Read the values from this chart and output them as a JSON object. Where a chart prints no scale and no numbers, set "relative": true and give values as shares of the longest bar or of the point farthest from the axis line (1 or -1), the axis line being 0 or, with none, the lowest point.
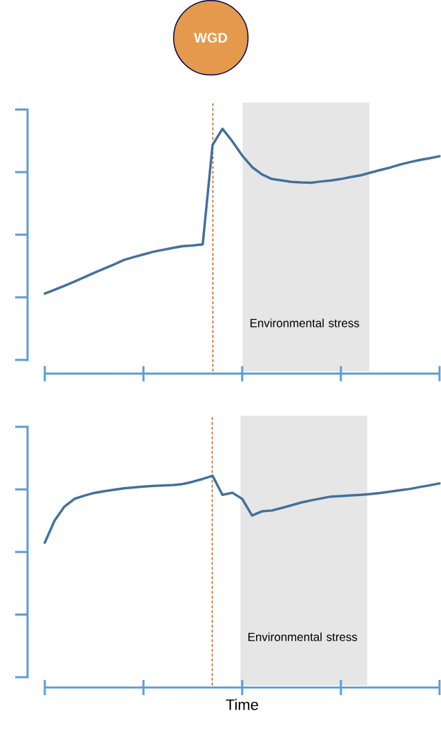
{
  "chart_data": [
    {
      "type": "line",
      "relative": true,
      "categories": [
        null,
        null,
        null,
        null,
        null,
        null,
        null,
        null,
        null,
        null,
        null,
        null,
        null,
        null,
        null,
        null,
        null,
        null,
        null,
        null,
        null,
        null,
        null,
        null,
        null,
        null,
        null,
        null,
        null,
        null,
        null,
        null,
        null,
        null,
        null,
        null,
        null,
        null,
        null,
        null,
        null
      ],
      "annotations": [
        "WGD",
        "Environmental stress"
      ],
      "series": [
        {
          "color": "#41719c",
          "values": [
            0.327,
            0.343,
            0.359,
            0.376,
            0.394,
            0.412,
            0.429,
            0.446,
            0.464,
            0.476,
            0.487,
            0.498,
            0.506,
            0.514,
            0.521,
            0.524,
            0.528,
            0.934,
            1.0,
            0.949,
            0.891,
            0.844,
            0.814,
            0.795,
            0.789,
            0.783,
            0.781,
            0.78,
            0.785,
            0.789,
            0.795,
            0.803,
            0.81,
            0.821,
            0.832,
            0.842,
            0.854,
            0.864,
            0.873,
            0.88,
            0.888
          ]
        }
      ]
    },
    {
      "type": "line",
      "relative": true,
      "xlabel": "Time",
      "categories": [
        null,
        null,
        null,
        null,
        null,
        null,
        null,
        null,
        null,
        null,
        null,
        null,
        null,
        null,
        null,
        null,
        null,
        null,
        null,
        null,
        null,
        null,
        null,
        null,
        null,
        null,
        null,
        null,
        null,
        null,
        null,
        null,
        null,
        null,
        null,
        null,
        null,
        null,
        null,
        null,
        null
      ],
      "annotations": [
        "Environmental stress"
      ],
      "series": [
        {
          "color": "#41719c",
          "values": [
            0.684,
            0.789,
            0.855,
            0.891,
            0.906,
            0.919,
            0.927,
            0.934,
            0.941,
            0.945,
            0.949,
            0.952,
            0.954,
            0.956,
            0.961,
            0.972,
            0.985,
            1.0,
            0.91,
            0.92,
            0.891,
            0.812,
            0.832,
            0.836,
            0.848,
            0.861,
            0.874,
            0.884,
            0.893,
            0.902,
            0.904,
            0.907,
            0.91,
            0.914,
            0.919,
            0.925,
            0.932,
            0.938,
            0.947,
            0.955,
            0.964
          ]
        }
      ]
    }
  ]
}
